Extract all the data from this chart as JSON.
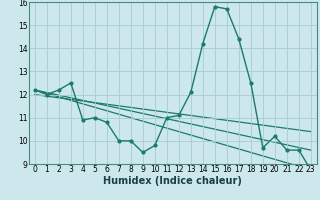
{
  "xlabel": "Humidex (Indice chaleur)",
  "bg_color": "#cce8ec",
  "grid_color": "#aacccc",
  "line_color": "#1a7a6e",
  "xlim": [
    -0.5,
    23.5
  ],
  "ylim": [
    9,
    16
  ],
  "yticks": [
    9,
    10,
    11,
    12,
    13,
    14,
    15,
    16
  ],
  "xticks": [
    0,
    1,
    2,
    3,
    4,
    5,
    6,
    7,
    8,
    9,
    10,
    11,
    12,
    13,
    14,
    15,
    16,
    17,
    18,
    19,
    20,
    21,
    22,
    23
  ],
  "series_main": {
    "x": [
      0,
      1,
      2,
      3,
      4,
      5,
      6,
      7,
      8,
      9,
      10,
      11,
      12,
      13,
      14,
      15,
      16,
      17,
      18,
      19,
      20,
      21,
      22,
      23
    ],
    "y": [
      12.2,
      12.0,
      12.2,
      12.5,
      10.9,
      11.0,
      10.8,
      10.0,
      10.0,
      9.5,
      9.8,
      11.0,
      11.1,
      12.1,
      14.2,
      15.8,
      15.7,
      14.4,
      12.5,
      9.7,
      10.2,
      9.6,
      9.6,
      8.75
    ]
  },
  "series_trend1": {
    "x": [
      0,
      23
    ],
    "y": [
      12.2,
      9.6
    ]
  },
  "series_trend2": {
    "x": [
      0,
      23
    ],
    "y": [
      12.0,
      10.4
    ]
  },
  "series_trend3": {
    "x": [
      0,
      23
    ],
    "y": [
      12.2,
      8.75
    ]
  },
  "xlabel_fontsize": 7,
  "tick_fontsize": 5.5
}
